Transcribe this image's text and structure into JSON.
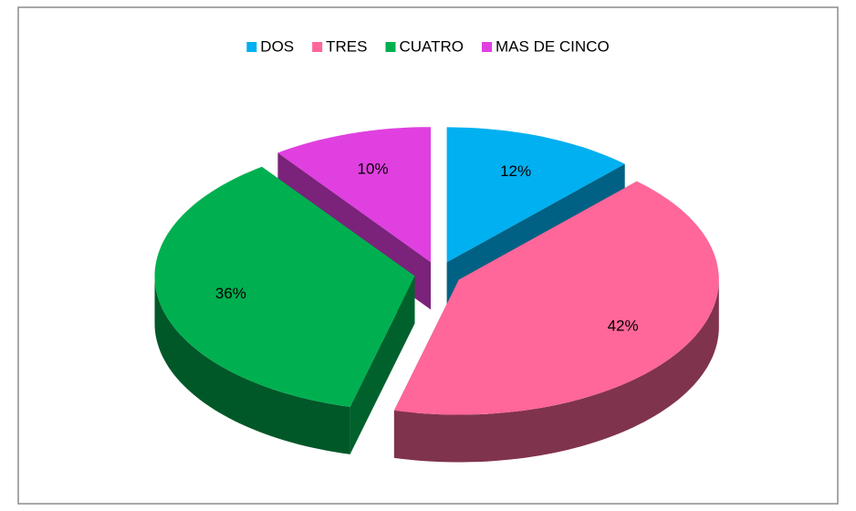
{
  "chart_data": {
    "type": "pie",
    "categories": [
      "DOS",
      "TRES",
      "CUATRO",
      "MAS DE CINCO"
    ],
    "values": [
      12,
      42,
      36,
      10
    ],
    "value_labels": [
      "12%",
      "42%",
      "36%",
      "10%"
    ],
    "colors": [
      "#00b0f0",
      "#ff6699",
      "#00b050",
      "#e040e0"
    ],
    "legend": "top"
  }
}
